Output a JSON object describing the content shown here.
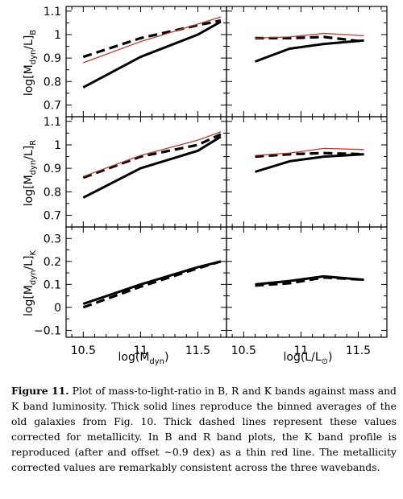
{
  "chart_data": [
    {
      "type": "line",
      "row": 0,
      "col": 0,
      "ylabel": "log[M_dyn/L]_B",
      "ylim": [
        0.65,
        1.12
      ],
      "xlim": [
        10.35,
        11.75
      ],
      "yticks": [
        0.7,
        0.75,
        0.8,
        0.85,
        0.9,
        0.95,
        1,
        1.05,
        1.1
      ],
      "yticklabels": [
        "0.7",
        "0.8",
        "0.9",
        "1",
        "1.1"
      ],
      "series": [
        {
          "style": "solid",
          "x": [
            10.5,
            11.0,
            11.5,
            11.7
          ],
          "y": [
            0.775,
            0.905,
            1.0,
            1.055
          ]
        },
        {
          "style": "dashed",
          "x": [
            10.5,
            11.0,
            11.5,
            11.7
          ],
          "y": [
            0.905,
            0.985,
            1.04,
            1.06
          ]
        },
        {
          "style": "thin-red",
          "x": [
            10.5,
            11.0,
            11.5,
            11.7
          ],
          "y": [
            0.88,
            0.97,
            1.045,
            1.075
          ]
        }
      ]
    },
    {
      "type": "line",
      "row": 0,
      "col": 1,
      "ylim": [
        0.65,
        1.12
      ],
      "xlim": [
        10.35,
        11.75
      ],
      "series": [
        {
          "style": "solid",
          "x": [
            10.6,
            10.9,
            11.2,
            11.55
          ],
          "y": [
            0.885,
            0.94,
            0.96,
            0.975
          ]
        },
        {
          "style": "dashed",
          "x": [
            10.6,
            10.9,
            11.2,
            11.55
          ],
          "y": [
            0.985,
            0.985,
            0.99,
            0.97
          ]
        },
        {
          "style": "thin-red",
          "x": [
            10.6,
            10.9,
            11.2,
            11.55
          ],
          "y": [
            0.985,
            0.99,
            1.005,
            0.995
          ]
        }
      ]
    },
    {
      "type": "line",
      "row": 1,
      "col": 0,
      "ylabel": "log[M_dyn/L]_R",
      "ylim": [
        0.65,
        1.12
      ],
      "xlim": [
        10.35,
        11.75
      ],
      "yticks": [
        0.7,
        0.75,
        0.8,
        0.85,
        0.9,
        0.95,
        1,
        1.05,
        1.1
      ],
      "yticklabels": [
        "0.7",
        "0.8",
        "0.9",
        "1",
        "1.1"
      ],
      "series": [
        {
          "style": "solid",
          "x": [
            10.5,
            11.0,
            11.5,
            11.7
          ],
          "y": [
            0.775,
            0.9,
            0.975,
            1.035
          ]
        },
        {
          "style": "dashed",
          "x": [
            10.5,
            11.0,
            11.5,
            11.7
          ],
          "y": [
            0.86,
            0.95,
            1.0,
            1.045
          ]
        },
        {
          "style": "thin-red",
          "x": [
            10.5,
            11.0,
            11.5,
            11.7
          ],
          "y": [
            0.865,
            0.955,
            1.02,
            1.055
          ]
        }
      ]
    },
    {
      "type": "line",
      "row": 1,
      "col": 1,
      "ylim": [
        0.65,
        1.12
      ],
      "xlim": [
        10.35,
        11.75
      ],
      "series": [
        {
          "style": "solid",
          "x": [
            10.6,
            10.9,
            11.2,
            11.55
          ],
          "y": [
            0.885,
            0.93,
            0.95,
            0.96
          ]
        },
        {
          "style": "dashed",
          "x": [
            10.6,
            10.9,
            11.2,
            11.55
          ],
          "y": [
            0.95,
            0.96,
            0.965,
            0.96
          ]
        },
        {
          "style": "thin-red",
          "x": [
            10.6,
            10.9,
            11.2,
            11.55
          ],
          "y": [
            0.955,
            0.965,
            0.985,
            0.98
          ]
        }
      ]
    },
    {
      "type": "line",
      "row": 2,
      "col": 0,
      "ylabel": "log[M_dyn/L]_K",
      "ylim": [
        -0.13,
        0.35
      ],
      "xlim": [
        10.35,
        11.75
      ],
      "xlabel": "log(M_dyn)",
      "xticks": [
        10.5,
        11,
        11.5
      ],
      "xticklabels": [
        "10.5",
        "11",
        "11.5"
      ],
      "yticks": [
        -0.1,
        -0.05,
        0,
        0.05,
        0.1,
        0.15,
        0.2,
        0.25,
        0.3
      ],
      "yticklabels": [
        "−0.1",
        "0",
        "0.1",
        "0.2",
        "0.3"
      ],
      "series": [
        {
          "style": "solid",
          "x": [
            10.5,
            11.0,
            11.5,
            11.7
          ],
          "y": [
            0.015,
            0.1,
            0.175,
            0.2
          ]
        },
        {
          "style": "dashed",
          "x": [
            10.5,
            11.0,
            11.5,
            11.7
          ],
          "y": [
            0.0,
            0.09,
            0.17,
            0.2
          ]
        }
      ]
    },
    {
      "type": "line",
      "row": 2,
      "col": 1,
      "ylim": [
        -0.13,
        0.35
      ],
      "xlim": [
        10.35,
        11.75
      ],
      "xlabel": "log(L/L_sun)",
      "xticks": [
        10.5,
        11,
        11.5
      ],
      "xticklabels": [
        "10.5",
        "11",
        "11.5"
      ],
      "series": [
        {
          "style": "solid",
          "x": [
            10.6,
            10.9,
            11.2,
            11.55
          ],
          "y": [
            0.1,
            0.115,
            0.135,
            0.12
          ]
        },
        {
          "style": "dashed",
          "x": [
            10.6,
            10.9,
            11.2,
            11.55
          ],
          "y": [
            0.095,
            0.105,
            0.13,
            0.12
          ]
        }
      ]
    }
  ],
  "colors": {
    "thin_red": "#c0392b",
    "ink": "#000000"
  },
  "axis_text": {
    "ylabel_B": {
      "pre": "log[M",
      "sub1": "dyn",
      "mid": "/L]",
      "sub2": "B"
    },
    "ylabel_R": {
      "pre": "log[M",
      "sub1": "dyn",
      "mid": "/L]",
      "sub2": "R"
    },
    "ylabel_K": {
      "pre": "log[M",
      "sub1": "dyn",
      "mid": "/L]",
      "sub2": "K"
    },
    "xlabel_left": {
      "pre": "log(M",
      "sub": "dyn",
      "post": ")"
    },
    "xlabel_right": {
      "pre": "log(L/L",
      "sub": "⊙",
      "post": ")"
    }
  },
  "caption": {
    "label": "Figure 11.",
    "text": "Plot of mass-to-light-ratio in B, R and K bands against mass and K band luminosity. Thick solid lines reproduce the binned averages of the old galaxies from Fig. 10. Thick dashed lines represent these values corrected for metallicity. In B and R band plots, the K band profile is reproduced (after and offset ∼0.9 dex) as a thin red line. The metallicity corrected values are remarkably consistent across the three wavebands."
  }
}
